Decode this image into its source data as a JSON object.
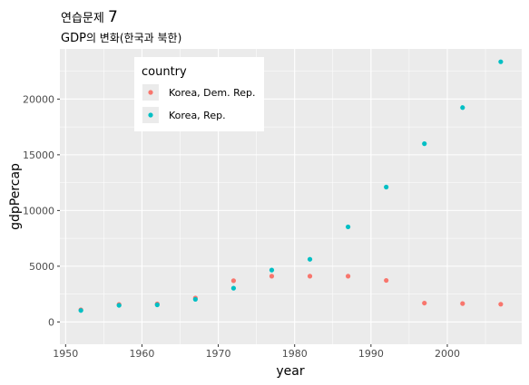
{
  "title": {
    "prefix": "연습문제 ",
    "number": "7"
  },
  "subtitle": {
    "prefix": "GDP",
    "suffix": "의 변화(한국과 북한)"
  },
  "colors": {
    "panel": "#ebebeb",
    "grid": "#ffffff",
    "north": "#f8766d",
    "south": "#00bfc4"
  },
  "chart_data": {
    "type": "scatter",
    "xlabel": "year",
    "ylabel": "gdpPercap",
    "xlim": [
      1949.25,
      2009.75
    ],
    "ylim": [
      -2000,
      24500
    ],
    "x_ticks": [
      1950,
      1960,
      1970,
      1980,
      1990,
      2000
    ],
    "y_ticks": [
      0,
      5000,
      10000,
      15000,
      20000
    ],
    "grid": true,
    "legend_title": "country",
    "legend_position": "top-left (inside plot)",
    "series": [
      {
        "name": "Korea, Dem. Rep.",
        "color": "#f8766d",
        "x": [
          1952,
          1957,
          1962,
          1967,
          1972,
          1977,
          1982,
          1987,
          1992,
          1997,
          2002,
          2007
        ],
        "y": [
          1088,
          1571,
          1622,
          2144,
          3702,
          4106,
          4106,
          4106,
          3726,
          1691,
          1647,
          1593
        ]
      },
      {
        "name": "Korea, Rep.",
        "color": "#00bfc4",
        "x": [
          1952,
          1957,
          1962,
          1967,
          1972,
          1977,
          1982,
          1987,
          1992,
          1997,
          2002,
          2007
        ],
        "y": [
          1031,
          1488,
          1536,
          2029,
          3031,
          4657,
          5623,
          8533,
          12104,
          15994,
          19234,
          23348
        ]
      }
    ]
  }
}
